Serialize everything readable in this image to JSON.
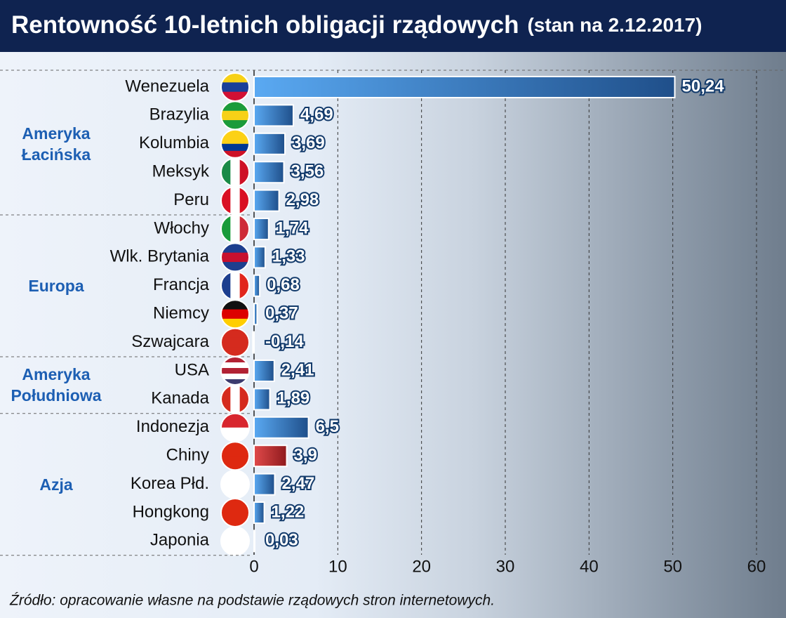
{
  "chart_data": {
    "type": "bar",
    "title": "Rentowność 10-letnich obligacji rządowych",
    "subtitle": "(stan na 2.12.2017)",
    "source": "Źródło: opracowanie własne na podstawie rządowych stron internetowych.",
    "xlim": [
      0,
      60
    ],
    "xticks": [
      0,
      10,
      20,
      30,
      40,
      50,
      60
    ],
    "grid": true,
    "groups": [
      {
        "name": "Ameryka Łacińska",
        "categories": [
          "Wenezuela",
          "Brazylia",
          "Kolumbia",
          "Meksyk",
          "Peru"
        ],
        "values": [
          50.24,
          4.69,
          3.69,
          3.56,
          2.98
        ],
        "value_labels": [
          "50,24",
          "4,69",
          "3,69",
          "3,56",
          "2,98"
        ],
        "colors": [
          "#3d86d6",
          "#3d86d6",
          "#3d86d6",
          "#3d86d6",
          "#3d86d6"
        ]
      },
      {
        "name": "Europa",
        "categories": [
          "Włochy",
          "Wlk. Brytania",
          "Francja",
          "Niemcy",
          "Szwajcara"
        ],
        "values": [
          1.74,
          1.33,
          0.68,
          0.37,
          -0.14
        ],
        "value_labels": [
          "1,74",
          "1,33",
          "0,68",
          "0,37",
          "-0,14"
        ],
        "colors": [
          "#3d86d6",
          "#3d86d6",
          "#3d86d6",
          "#3d86d6",
          "#3d86d6"
        ]
      },
      {
        "name": "Ameryka Południowa",
        "categories": [
          "USA",
          "Kanada"
        ],
        "values": [
          2.41,
          1.89
        ],
        "value_labels": [
          "2,41",
          "1,89"
        ],
        "colors": [
          "#3d86d6",
          "#3d86d6"
        ]
      },
      {
        "name": "Azja",
        "categories": [
          "Indonezja",
          "Chiny",
          "Korea Płd.",
          "Hongkong",
          "Japonia"
        ],
        "values": [
          6.5,
          3.9,
          2.47,
          1.22,
          0.03
        ],
        "value_labels": [
          "6,5",
          "3,9",
          "2,47",
          "1,22",
          "0,03"
        ],
        "colors": [
          "#3d86d6",
          "#c0282d",
          "#3d86d6",
          "#3d86d6",
          "#3d86d6"
        ]
      }
    ]
  }
}
